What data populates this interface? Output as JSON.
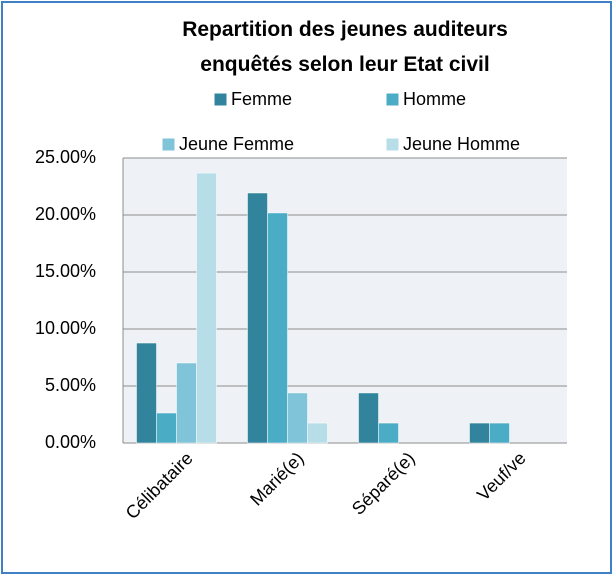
{
  "chart_data": {
    "type": "bar",
    "title": "Repartition des jeunes auditeurs enquêtés selon leur Etat civil",
    "categories": [
      "Célibataire",
      "Marié(e)",
      "Séparé(e)",
      "Veuf/ve"
    ],
    "series": [
      {
        "name": "Femme",
        "color": "#31849b",
        "values": [
          8.77,
          21.93,
          4.39,
          1.75
        ]
      },
      {
        "name": "Homme",
        "color": "#4bacc6",
        "values": [
          2.63,
          20.18,
          1.75,
          1.75
        ]
      },
      {
        "name": "Jeune Femme",
        "color": "#7fc4d8",
        "values": [
          7.02,
          4.39,
          0,
          0
        ]
      },
      {
        "name": "Jeune Homme",
        "color": "#b6dde8",
        "values": [
          23.68,
          1.75,
          0,
          0
        ]
      }
    ],
    "ylim": [
      0,
      25
    ],
    "yticks": [
      {
        "value": 0,
        "label": "0.00%"
      },
      {
        "value": 5,
        "label": "5.00%"
      },
      {
        "value": 10,
        "label": "10.00%"
      },
      {
        "value": 15,
        "label": "15.00%"
      },
      {
        "value": 20,
        "label": "20.00%"
      },
      {
        "value": 25,
        "label": "25.00%"
      }
    ],
    "grid": true,
    "legend": "top"
  }
}
